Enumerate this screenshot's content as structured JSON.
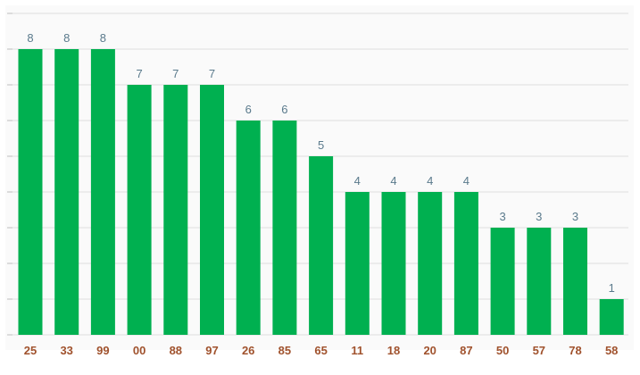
{
  "chart_data": {
    "type": "bar",
    "categories": [
      "25",
      "33",
      "99",
      "00",
      "88",
      "97",
      "26",
      "85",
      "65",
      "11",
      "18",
      "20",
      "87",
      "50",
      "57",
      "78",
      "58"
    ],
    "values": [
      8,
      8,
      8,
      7,
      7,
      7,
      6,
      6,
      5,
      4,
      4,
      4,
      4,
      3,
      3,
      3,
      1
    ],
    "title": "",
    "xlabel": "",
    "ylabel": "",
    "ylim": [
      0,
      8
    ],
    "grid": true,
    "legend": "none",
    "colors": {
      "bar": "#00b050",
      "value_label": "#5a7a8c",
      "category_label": "#a0522d",
      "grid": "#dedede",
      "plot_background": "#fafafa"
    }
  }
}
